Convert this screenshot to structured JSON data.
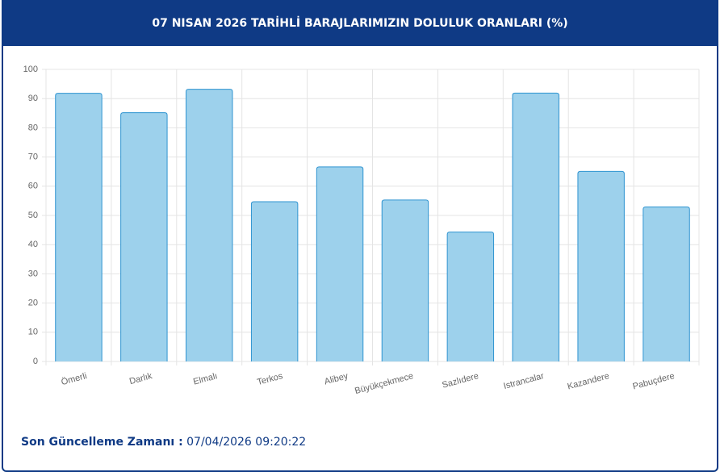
{
  "chart_data": {
    "type": "bar",
    "title": "07 NISAN 2026 TARİHLİ BARAJLARIMIZIN DOLULUK ORANLARI (%)",
    "categories": [
      "Ömerli",
      "Darlık",
      "Elmalı",
      "Terkos",
      "Alibey",
      "Büyükçekmece",
      "Sazlıdere",
      "Istrancalar",
      "Kazandere",
      "Pabuçdere"
    ],
    "values": [
      91.8,
      85.2,
      93.2,
      54.7,
      66.6,
      55.3,
      44.3,
      91.9,
      65.1,
      52.9
    ],
    "color": "#9dd1ec",
    "border_color": "#2f94d0",
    "ylim": [
      0,
      100
    ],
    "yticks": [
      0,
      10,
      20,
      30,
      40,
      50,
      60,
      70,
      80,
      90,
      100
    ],
    "grid": true
  },
  "footer": {
    "label": "Son Güncelleme Zamanı :",
    "value": "07/04/2026 09:20:22"
  }
}
